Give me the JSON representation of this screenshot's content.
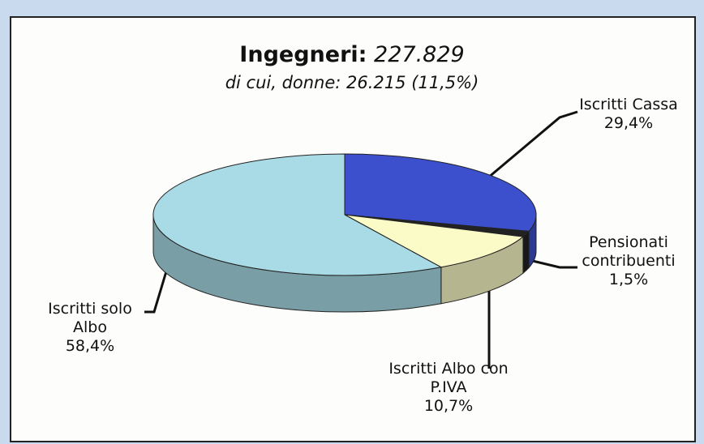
{
  "chart_data": {
    "type": "pie",
    "title": "Ingegneri:",
    "total": "227.829",
    "subtitle": "di cui, donne: 26.215 (11,5%)",
    "categories": [
      "Iscritti Cassa",
      "Pensionati contribuenti",
      "Iscritti Albo con P.IVA",
      "Iscritti solo Albo"
    ],
    "values": [
      29.4,
      1.5,
      10.7,
      58.4
    ],
    "value_labels": [
      "29,4%",
      "1,5%",
      "10,7%",
      "58,4%"
    ],
    "colors": [
      "#3c4fcc",
      "#222222",
      "#fbfbc8",
      "#a9dbe6"
    ]
  }
}
